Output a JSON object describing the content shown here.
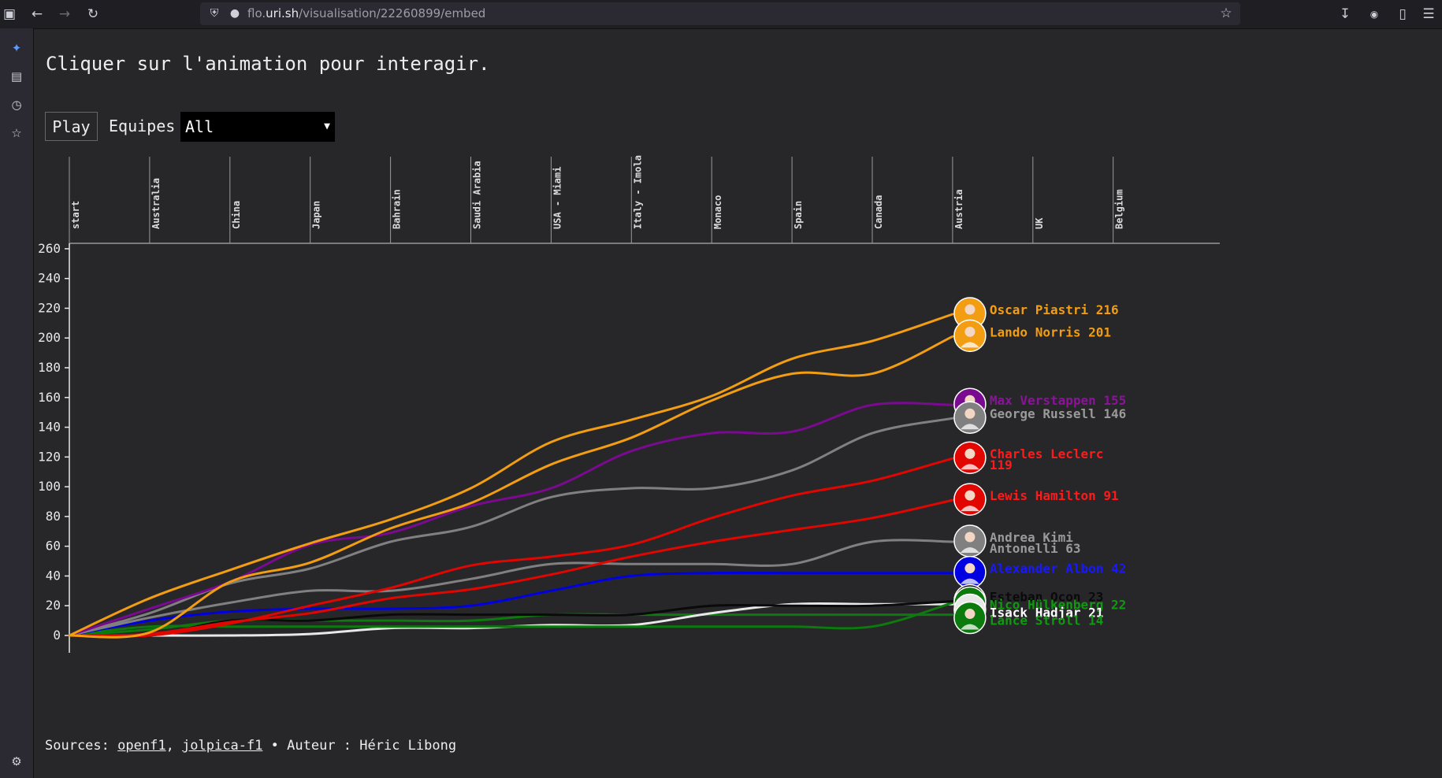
{
  "browser": {
    "url_prefix": "flo.",
    "url_host": "uri.sh",
    "url_path": "/visualisation/22260899/embed"
  },
  "page": {
    "title": "Cliquer sur l'animation pour interagir.",
    "play_label": "Play",
    "team_filter_label": "Equipes",
    "team_filter_value": "All"
  },
  "footer": {
    "sources_prefix": "Sources:",
    "source_1": "openf1",
    "separator": ",",
    "source_2": "jolpica-f1",
    "author_text": "• Auteur : Héric Libong"
  },
  "chart_data": {
    "type": "line",
    "races": [
      "start",
      "Australia",
      "China",
      "Japan",
      "Bahrain",
      "Saudi Arabia",
      "USA - Miami",
      "Italy - Imola",
      "Monaco",
      "Spain",
      "Canada",
      "Austria",
      "UK",
      "Belgium"
    ],
    "y_ticks": [
      0,
      20,
      40,
      60,
      80,
      100,
      120,
      140,
      160,
      180,
      200,
      220,
      240,
      260
    ],
    "ylim": [
      0,
      270
    ],
    "x_points": 12,
    "series": [
      {
        "name": "Oscar Piastri",
        "total": "216",
        "label_lines": [
          "Oscar Piastri 216"
        ],
        "color": "#f29d12",
        "label_color": "#f29d12",
        "values": [
          0,
          25,
          44,
          62,
          78,
          99,
          130,
          145,
          161,
          186,
          198,
          216
        ]
      },
      {
        "name": "Lando Norris",
        "total": "201",
        "label_lines": [
          "Lando Norris 201"
        ],
        "color": "#f29d12",
        "label_color": "#f29d12",
        "values": [
          0,
          2,
          36,
          49,
          72,
          89,
          115,
          133,
          158,
          176,
          176,
          201
        ]
      },
      {
        "name": "Max Verstappen",
        "total": "155",
        "label_lines": [
          "Max Verstappen 155"
        ],
        "color": "#7a0a8f",
        "label_color": "#8a1399",
        "values": [
          0,
          18,
          36,
          61,
          69,
          87,
          99,
          124,
          136,
          137,
          155,
          155
        ]
      },
      {
        "name": "George Russell",
        "total": "146",
        "label_lines": [
          "George Russell 146"
        ],
        "color": "#808080",
        "label_color": "#9a9a9a",
        "values": [
          0,
          15,
          35,
          45,
          63,
          73,
          93,
          99,
          99,
          111,
          136,
          146
        ]
      },
      {
        "name": "Charles Leclerc",
        "total": "119",
        "label_lines": [
          "Charles Leclerc",
          "119"
        ],
        "color": "#e10600",
        "label_color": "#ff1a1a",
        "values": [
          0,
          0,
          8,
          20,
          32,
          47,
          53,
          61,
          79,
          94,
          104,
          119
        ]
      },
      {
        "name": "Lewis Hamilton",
        "total": "91",
        "label_lines": [
          "Lewis Hamilton 91"
        ],
        "color": "#e10600",
        "label_color": "#ff1a1a",
        "values": [
          0,
          1,
          9,
          15,
          25,
          31,
          41,
          53,
          63,
          71,
          79,
          91
        ]
      },
      {
        "name": "Andrea Kimi Antonelli",
        "total": "63",
        "label_lines": [
          "Andrea Kimi",
          "Antonelli 63"
        ],
        "color": "#808080",
        "label_color": "#9a9a9a",
        "values": [
          0,
          12,
          22,
          30,
          30,
          38,
          48,
          48,
          48,
          48,
          63,
          63
        ]
      },
      {
        "name": "Alexander Albon",
        "total": "42",
        "label_lines": [
          "Alexander Albon 42"
        ],
        "color": "#0000e0",
        "label_color": "#1818ff",
        "values": [
          0,
          10,
          16,
          18,
          18,
          20,
          30,
          40,
          42,
          42,
          42,
          42
        ]
      },
      {
        "name": "Esteban Ocon",
        "total": "23",
        "label_lines": [
          "Esteban Ocon 23"
        ],
        "color": "#0a0a0a",
        "label_color": "#0a0a0a",
        "values": [
          0,
          0,
          10,
          10,
          14,
          14,
          14,
          14,
          20,
          20,
          20,
          23
        ]
      },
      {
        "name": "Nico Hülkenberg",
        "total": "22",
        "label_lines": [
          "Nico Hülkenberg 22"
        ],
        "color": "#0c7a0c",
        "label_color": "#0f9a0f",
        "values": [
          0,
          6,
          6,
          6,
          6,
          6,
          6,
          6,
          6,
          6,
          6,
          22
        ]
      },
      {
        "name": "Isack Hadjar",
        "total": "21",
        "label_lines": [
          "Isack Hadjar 21"
        ],
        "color": "#e8e8e8",
        "label_color": "#ffffff",
        "values": [
          0,
          0,
          0,
          1,
          5,
          5,
          7,
          7,
          15,
          21,
          21,
          21
        ]
      },
      {
        "name": "Lance Stroll",
        "total": "14",
        "label_lines": [
          "Lance Stroll 14"
        ],
        "color": "#0c7a0c",
        "label_color": "#0f9a0f",
        "values": [
          0,
          4,
          10,
          10,
          10,
          10,
          14,
          14,
          14,
          14,
          14,
          14
        ]
      }
    ]
  }
}
